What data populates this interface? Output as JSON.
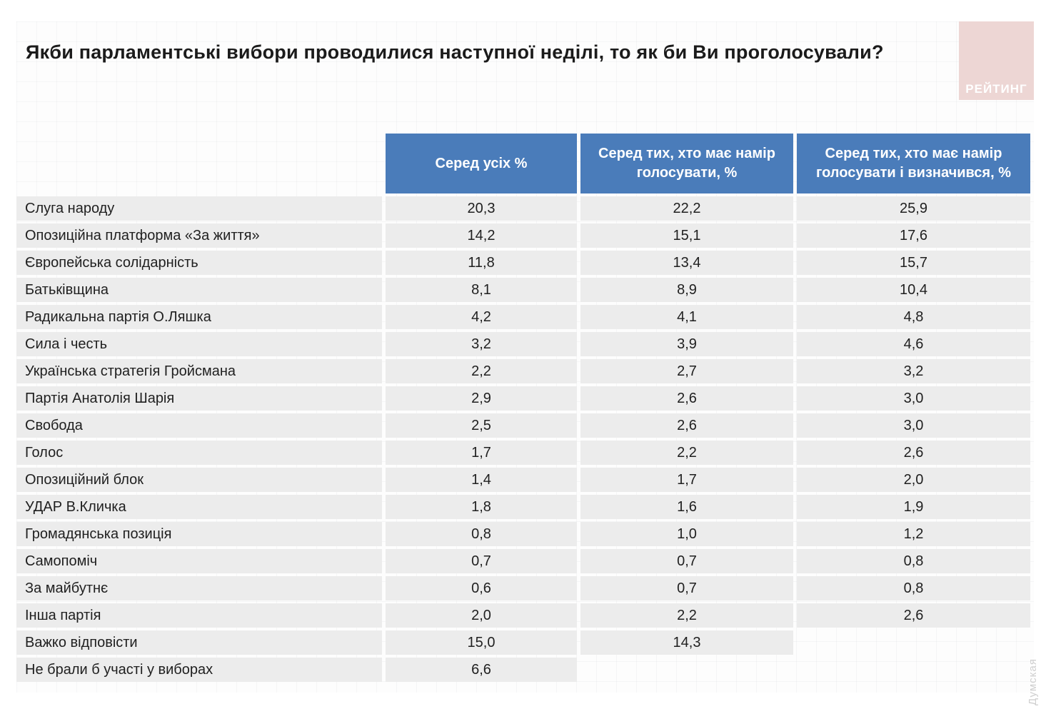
{
  "title": "Якби парламентські вибори проводилися наступної неділі, то як би Ви проголосували?",
  "logo": {
    "label": "РЕЙТИНГ"
  },
  "watermark": "Думская",
  "colors": {
    "header_bg": "#4a7cba",
    "header_text": "#ffffff",
    "row_bg": "#ececec",
    "logo_bg": "#edd6d4",
    "body_text": "#1f1f1f"
  },
  "chart_data": {
    "type": "table",
    "title": "Якби парламентські вибори проводилися наступної неділі, то як би Ви проголосували?",
    "columns": [
      "Серед усіх %",
      "Серед тих, хто має намір голосувати, %",
      "Серед тих, хто має намір голосувати і визначився, %"
    ],
    "rows": [
      [
        "Слуга народу",
        20.3,
        22.2,
        25.9
      ],
      [
        "Опозиційна платформа «За життя»",
        14.2,
        15.1,
        17.6
      ],
      [
        "Європейська солідарність",
        11.8,
        13.4,
        15.7
      ],
      [
        "Батьківщина",
        8.1,
        8.9,
        10.4
      ],
      [
        "Радикальна партія О.Ляшка",
        4.2,
        4.1,
        4.8
      ],
      [
        "Сила і честь",
        3.2,
        3.9,
        4.6
      ],
      [
        "Українська стратегія Гройсмана",
        2.2,
        2.7,
        3.2
      ],
      [
        "Партія Анатолія Шарія",
        2.9,
        2.6,
        3.0
      ],
      [
        "Свобода",
        2.5,
        2.6,
        3.0
      ],
      [
        "Голос",
        1.7,
        2.2,
        2.6
      ],
      [
        "Опозиційний блок",
        1.4,
        1.7,
        2.0
      ],
      [
        "УДАР В.Кличка",
        1.8,
        1.6,
        1.9
      ],
      [
        "Громадянська позиція",
        0.8,
        1.0,
        1.2
      ],
      [
        "Самопоміч",
        0.7,
        0.7,
        0.8
      ],
      [
        "За майбутнє",
        0.6,
        0.7,
        0.8
      ],
      [
        "Інша партія",
        2.0,
        2.2,
        2.6
      ],
      [
        "Важко відповісти",
        15.0,
        14.3,
        null
      ],
      [
        "Не брали б участі у виборах",
        6.6,
        null,
        null
      ]
    ],
    "layout": {
      "decimal_separator": ",",
      "missing_cells_blank": true,
      "header_position": "top",
      "grid_background": true
    }
  }
}
